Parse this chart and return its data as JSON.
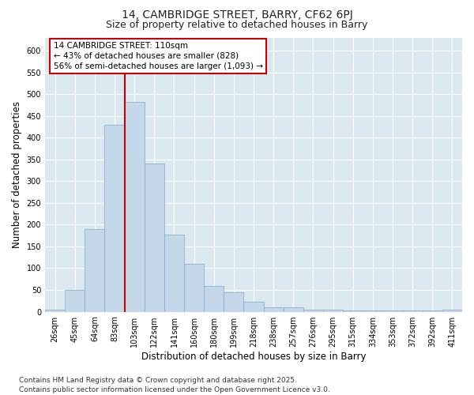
{
  "title1": "14, CAMBRIDGE STREET, BARRY, CF62 6PJ",
  "title2": "Size of property relative to detached houses in Barry",
  "xlabel": "Distribution of detached houses by size in Barry",
  "ylabel": "Number of detached properties",
  "categories": [
    "26sqm",
    "45sqm",
    "64sqm",
    "83sqm",
    "103sqm",
    "122sqm",
    "141sqm",
    "160sqm",
    "180sqm",
    "199sqm",
    "218sqm",
    "238sqm",
    "257sqm",
    "276sqm",
    "295sqm",
    "315sqm",
    "334sqm",
    "353sqm",
    "372sqm",
    "392sqm",
    "411sqm"
  ],
  "values": [
    5,
    50,
    190,
    430,
    482,
    340,
    178,
    110,
    60,
    45,
    23,
    10,
    10,
    5,
    4,
    3,
    2,
    2,
    2,
    2,
    5
  ],
  "bar_color": "#c5d8ea",
  "bar_edge_color": "#8ab0cc",
  "vline_x": 3.5,
  "vline_color": "#cc0000",
  "annotation_title": "14 CAMBRIDGE STREET: 110sqm",
  "annotation_line1": "← 43% of detached houses are smaller (828)",
  "annotation_line2": "56% of semi-detached houses are larger (1,093) →",
  "annotation_box_color": "#ffffff",
  "annotation_box_edge": "#cc0000",
  "ylim": [
    0,
    630
  ],
  "yticks": [
    0,
    50,
    100,
    150,
    200,
    250,
    300,
    350,
    400,
    450,
    500,
    550,
    600
  ],
  "bg_color": "#dce8f0",
  "grid_color": "#ffffff",
  "footer": "Contains HM Land Registry data © Crown copyright and database right 2025.\nContains public sector information licensed under the Open Government Licence v3.0.",
  "title_fontsize": 10,
  "subtitle_fontsize": 9,
  "axis_label_fontsize": 8.5,
  "tick_fontsize": 7,
  "annotation_fontsize": 7.5,
  "footer_fontsize": 6.5
}
